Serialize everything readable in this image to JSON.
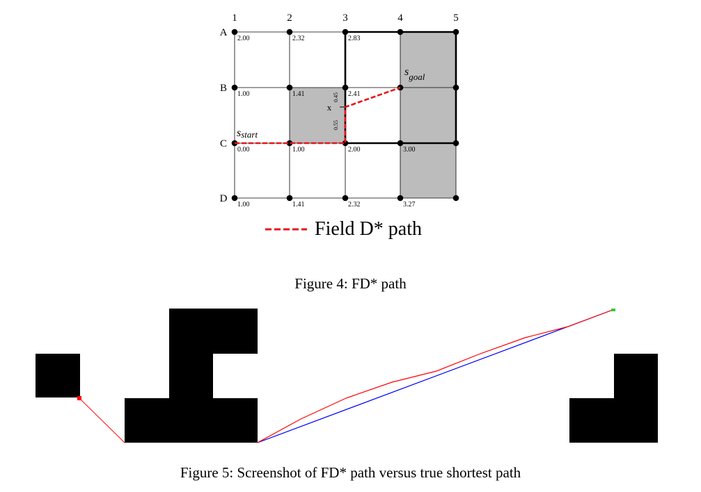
{
  "figure4": {
    "caption": "Figure 4: FD* path",
    "col_labels": [
      "1",
      "2",
      "3",
      "4",
      "5"
    ],
    "row_labels": [
      "A",
      "B",
      "C",
      "D"
    ],
    "node_values": [
      [
        "2.00",
        "2.32",
        "2.83",
        "",
        ""
      ],
      [
        "1.00",
        "1.41",
        "2.41",
        "",
        ""
      ],
      [
        "0.00",
        "1.00",
        "2.00",
        "3.00",
        ""
      ],
      [
        "1.00",
        "1.41",
        "2.32",
        "3.27",
        ""
      ]
    ],
    "obstacle_cells": [
      [
        1,
        1
      ],
      [
        0,
        3
      ],
      [
        1,
        3
      ],
      [
        2,
        3
      ]
    ],
    "start_label": "s",
    "start_subscript": "start",
    "goal_label": "s",
    "goal_subscript": "goal",
    "x_label": "x",
    "segment_upper": "0.45",
    "segment_lower": "0.55",
    "legend_label": "Field D* path",
    "path_color": "#e8141b",
    "obstacle_color": "#bcbcbc"
  },
  "figure5": {
    "caption": "Figure 5: Screenshot of FD* path versus true shortest path",
    "fd_path_color": "#ff0000",
    "true_path_color": "#0000ff",
    "start_marker_color": "#ff0000",
    "goal_marker_color": "#33cc33"
  }
}
